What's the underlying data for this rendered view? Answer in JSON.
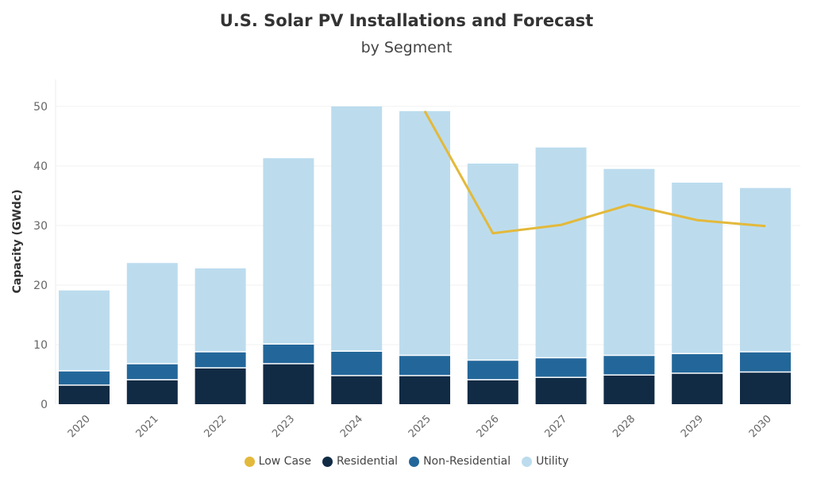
{
  "chart_data": {
    "type": "bar",
    "stacked": true,
    "title": "U.S. Solar PV Installations and Forecast",
    "subtitle": "by Segment",
    "xlabel": "",
    "ylabel": "Capacity (GWdc)",
    "ylim": [
      0,
      50
    ],
    "yticks": [
      "0",
      "10",
      "20",
      "30",
      "40",
      "50"
    ],
    "grid": true,
    "legend_position": "bottom",
    "categories": [
      "2020",
      "2021",
      "2022",
      "2023",
      "2024",
      "2025",
      "2026",
      "2027",
      "2028",
      "2029",
      "2030"
    ],
    "series": [
      {
        "name": "Residential",
        "type": "bar",
        "color": "#112b45",
        "values": [
          3.1,
          4.0,
          6.0,
          6.7,
          4.7,
          4.7,
          4.0,
          4.4,
          4.8,
          5.1,
          5.3
        ]
      },
      {
        "name": "Non-Residential",
        "type": "bar",
        "color": "#23679a",
        "values": [
          2.4,
          2.7,
          2.7,
          3.3,
          4.1,
          3.4,
          3.3,
          3.3,
          3.3,
          3.3,
          3.4
        ]
      },
      {
        "name": "Utility",
        "type": "bar",
        "color": "#bcdcee",
        "values": [
          13.6,
          17.0,
          14.1,
          31.3,
          41.2,
          41.1,
          33.1,
          35.4,
          31.4,
          28.8,
          27.6
        ]
      },
      {
        "name": "Low Case",
        "type": "line",
        "color": "#e3b93b",
        "values": [
          null,
          null,
          null,
          null,
          null,
          49.2,
          28.7,
          30.1,
          33.5,
          30.9,
          29.9
        ]
      }
    ],
    "legend_order": [
      "Low Case",
      "Residential",
      "Non-Residential",
      "Utility"
    ]
  }
}
